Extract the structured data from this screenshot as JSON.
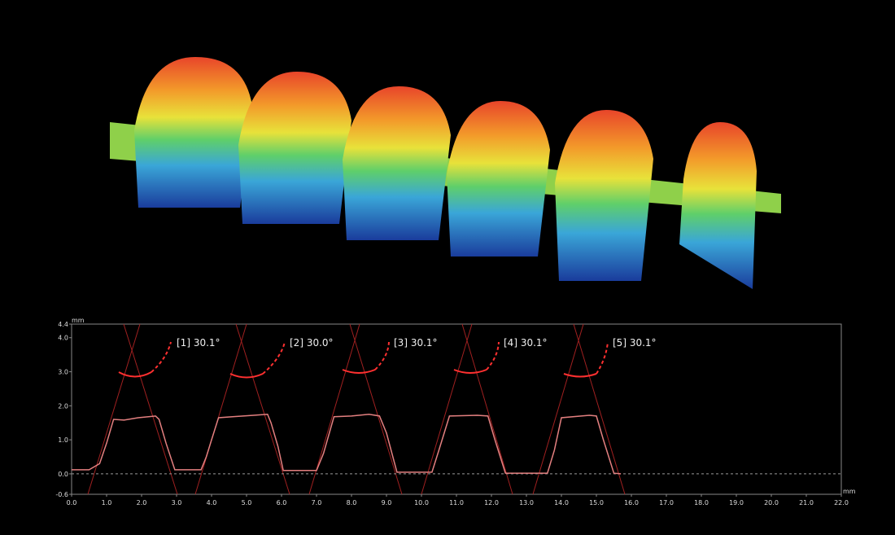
{
  "chart_data": {
    "type": "line",
    "xlabel": "mm",
    "ylabel": "mm",
    "annotations": [
      "[1] 30.1°",
      "[2] 30.0°",
      "[3] 30.1°",
      "[4] 30.1°",
      "[5] 30.1°"
    ],
    "x": [
      0,
      0.5,
      0.8,
      1.0,
      1.2,
      1.5,
      1.9,
      2.4,
      2.5,
      2.7,
      2.95,
      3.7,
      3.85,
      4.0,
      4.2,
      4.6,
      5.2,
      5.6,
      5.7,
      5.9,
      6.05,
      7.0,
      7.2,
      7.5,
      8.0,
      8.5,
      8.8,
      9.0,
      9.3,
      10.3,
      10.5,
      10.8,
      11.6,
      11.9,
      12.1,
      12.4,
      13.6,
      13.8,
      14.0,
      14.8,
      15.0,
      15.2,
      15.5,
      15.7
    ],
    "series": [
      {
        "color": "#e48080",
        "values": [
          0.12,
          0.12,
          0.3,
          0.9,
          1.6,
          1.58,
          1.65,
          1.7,
          1.6,
          0.9,
          0.12,
          0.12,
          0.5,
          1.0,
          1.65,
          1.68,
          1.72,
          1.75,
          1.5,
          0.8,
          0.1,
          0.1,
          0.6,
          1.68,
          1.7,
          1.75,
          1.7,
          1.2,
          0.05,
          0.05,
          0.7,
          1.7,
          1.72,
          1.7,
          1.0,
          0.02,
          0.02,
          0.7,
          1.65,
          1.72,
          1.7,
          1.0,
          0.02,
          0.0
        ]
      }
    ],
    "xlim": [
      0,
      22
    ],
    "xticks": [
      {
        "value": 0,
        "label": "0.0"
      },
      {
        "value": 1,
        "label": "1.0"
      },
      {
        "value": 2,
        "label": "2.0"
      },
      {
        "value": 3,
        "label": "3.0"
      },
      {
        "value": 4,
        "label": "4.0"
      },
      {
        "value": 5,
        "label": "5.0"
      },
      {
        "value": 6,
        "label": "6.0"
      },
      {
        "value": 7,
        "label": "7.0"
      },
      {
        "value": 8,
        "label": "8.0"
      },
      {
        "value": 9,
        "label": "9.0"
      },
      {
        "value": 10,
        "label": "10.0"
      },
      {
        "value": 11,
        "label": "11.0"
      },
      {
        "value": 12,
        "label": "12.0"
      },
      {
        "value": 13,
        "label": "13.0"
      },
      {
        "value": 14,
        "label": "14.0"
      },
      {
        "value": 15,
        "label": "15.0"
      },
      {
        "value": 16,
        "label": "16.0"
      },
      {
        "value": 17,
        "label": "17.0"
      },
      {
        "value": 18,
        "label": "18.0"
      },
      {
        "value": 19,
        "label": "19.0"
      },
      {
        "value": 20,
        "label": "20.0"
      },
      {
        "value": 21,
        "label": "21.0"
      },
      {
        "value": 22,
        "label": "22.0"
      }
    ],
    "ylim": [
      -0.6,
      4.4
    ],
    "yticks": [
      -0.6,
      {
        "value": 0,
        "label": "0.0"
      },
      {
        "value": 1,
        "label": "1.0"
      },
      {
        "value": 2,
        "label": "2.0"
      },
      {
        "value": 3,
        "label": "3.0"
      },
      {
        "value": 4,
        "label": "4.0"
      },
      4.4
    ]
  }
}
